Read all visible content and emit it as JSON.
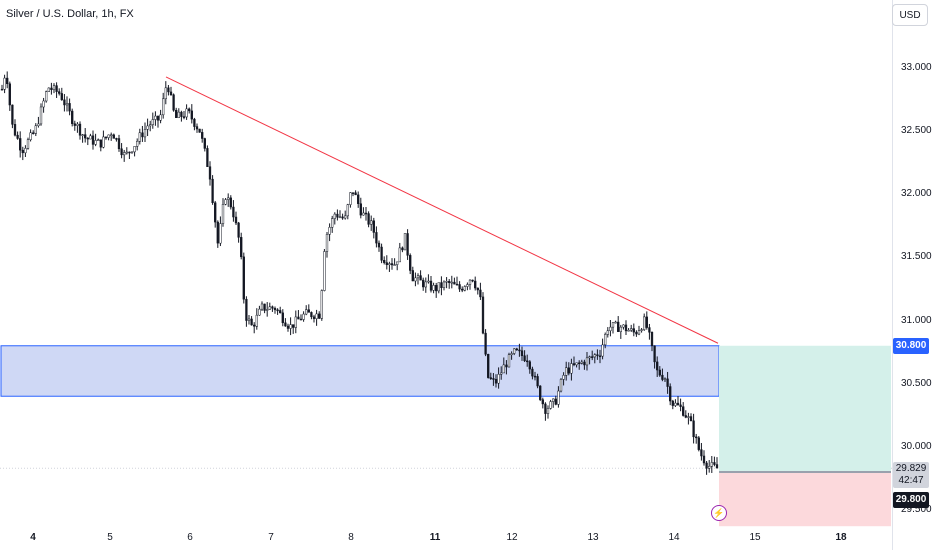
{
  "header": {
    "title": "Silver / U.S. Dollar, 1h, FX",
    "currency": "USD"
  },
  "colors": {
    "up": "#131722",
    "down": "#131722",
    "zone_fill": "#cfd8f5",
    "zone_border": "#2962ff",
    "trendline": "#f23645",
    "profit": "#d4f0ea",
    "loss": "#fcd9dc"
  },
  "chart_data": {
    "type": "candlestick",
    "title": "Silver / U.S. Dollar, 1h, FX",
    "x_tick_labels": [
      "4",
      "5",
      "6",
      "7",
      "8",
      "11",
      "12",
      "13",
      "14",
      "15",
      "18"
    ],
    "x_tick_bold": [
      "4",
      "11",
      "18"
    ],
    "y_tick_labels": [
      "33.000",
      "32.500",
      "32.000",
      "31.500",
      "31.000",
      "30.500",
      "30.000",
      "29.500"
    ],
    "ylim": [
      29.34,
      33.54
    ],
    "price_anchors": [
      [
        0,
        32.75
      ],
      [
        6,
        33.0
      ],
      [
        12,
        32.55
      ],
      [
        22,
        32.35
      ],
      [
        35,
        32.5
      ],
      [
        48,
        32.85
      ],
      [
        60,
        32.8
      ],
      [
        72,
        32.6
      ],
      [
        85,
        32.45
      ],
      [
        100,
        32.4
      ],
      [
        112,
        32.5
      ],
      [
        125,
        32.3
      ],
      [
        135,
        32.4
      ],
      [
        148,
        32.55
      ],
      [
        160,
        32.6
      ],
      [
        167,
        32.9
      ],
      [
        175,
        32.6
      ],
      [
        188,
        32.65
      ],
      [
        200,
        32.5
      ],
      [
        210,
        32.15
      ],
      [
        218,
        31.6
      ],
      [
        225,
        32.0
      ],
      [
        232,
        31.9
      ],
      [
        240,
        31.6
      ],
      [
        245,
        31.05
      ],
      [
        252,
        30.95
      ],
      [
        262,
        31.1
      ],
      [
        275,
        31.1
      ],
      [
        290,
        30.95
      ],
      [
        305,
        31.05
      ],
      [
        320,
        31.05
      ],
      [
        325,
        31.65
      ],
      [
        335,
        31.85
      ],
      [
        345,
        31.8
      ],
      [
        352,
        32.05
      ],
      [
        362,
        31.85
      ],
      [
        372,
        31.75
      ],
      [
        382,
        31.5
      ],
      [
        395,
        31.45
      ],
      [
        405,
        31.65
      ],
      [
        412,
        31.35
      ],
      [
        422,
        31.3
      ],
      [
        435,
        31.25
      ],
      [
        448,
        31.3
      ],
      [
        460,
        31.25
      ],
      [
        472,
        31.35
      ],
      [
        480,
        31.2
      ],
      [
        484,
        30.8
      ],
      [
        488,
        30.55
      ],
      [
        495,
        30.5
      ],
      [
        505,
        30.65
      ],
      [
        515,
        30.75
      ],
      [
        528,
        30.7
      ],
      [
        538,
        30.45
      ],
      [
        545,
        30.3
      ],
      [
        555,
        30.35
      ],
      [
        565,
        30.6
      ],
      [
        578,
        30.65
      ],
      [
        590,
        30.7
      ],
      [
        600,
        30.75
      ],
      [
        608,
        30.95
      ],
      [
        622,
        30.95
      ],
      [
        635,
        30.9
      ],
      [
        645,
        31.0
      ],
      [
        650,
        30.85
      ],
      [
        656,
        30.6
      ],
      [
        665,
        30.55
      ],
      [
        672,
        30.35
      ],
      [
        682,
        30.3
      ],
      [
        690,
        30.2
      ],
      [
        700,
        29.95
      ],
      [
        708,
        29.85
      ],
      [
        716,
        29.83
      ]
    ],
    "last_price": 29.829,
    "countdown": "42:47",
    "annotations": {
      "zone": {
        "top": 30.8,
        "bottom": 30.4
      },
      "trendline": {
        "from": {
          "x": 166,
          "price": 32.93
        },
        "to": {
          "x": 718,
          "price": 30.82
        }
      },
      "position": {
        "entry": 29.8,
        "target": 30.8,
        "stop": 29.37
      }
    },
    "price_labels": {
      "target": "30.800",
      "last": "29.829",
      "entry": "29.800"
    }
  }
}
